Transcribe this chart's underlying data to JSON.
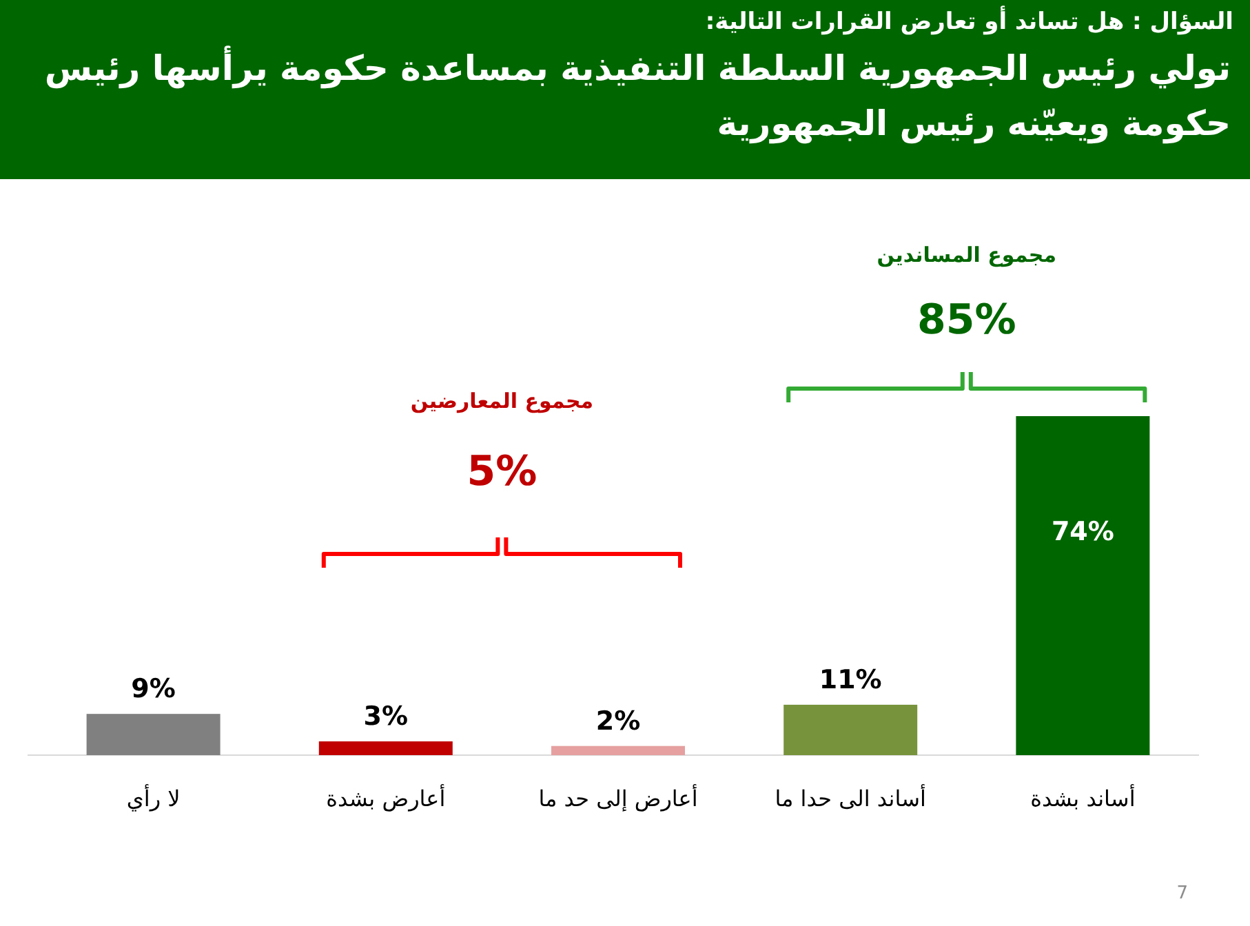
{
  "chart_data": {
    "type": "bar",
    "title": "تولي رئيس الجمهورية السلطة التنفيذية بمساعدة حكومة يرأسها رئيس حكومة ويعيّنه رئيس الجمهورية",
    "subtitle": "السؤال : هل تساند أو تعارض القرارات التالية:",
    "categories": [
      "لا رأي",
      "أعارض بشدة",
      "أعارض إلى حد ما",
      "أساند الى حدا ما",
      "أساند بشدة"
    ],
    "values": [
      9,
      3,
      2,
      11,
      74
    ],
    "colors": [
      "#808080",
      "#c00000",
      "#e6a0a0",
      "#77933c",
      "#006600"
    ],
    "value_labels": [
      "9%",
      "3%",
      "2%",
      "11%",
      "74%"
    ],
    "annotations": [
      "مجموع المعارضين",
      "5%",
      "مجموع المساندين",
      "85%",
      "7"
    ]
  }
}
